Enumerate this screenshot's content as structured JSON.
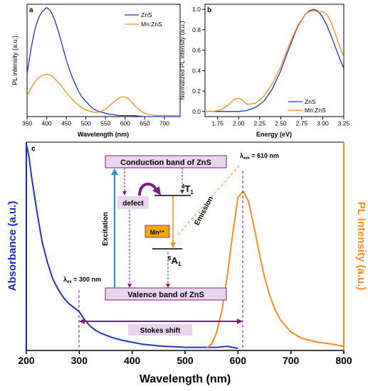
{
  "colors": {
    "blue": "#2233cc",
    "orange": "#ff8c1a",
    "purple": "#7a1f7a",
    "box_fill": "#e9d6ee",
    "mn_box": "#f5a800",
    "excitation_arrow": "#1f8fd6",
    "absorbance_axis": "#1428c8",
    "pl_axis": "#ff8c1a"
  },
  "panels": {
    "a": {
      "label": "a"
    },
    "b": {
      "label": "b"
    },
    "c": {
      "label": "c"
    }
  },
  "diagram": {
    "conduction": "Conduction band of ZnS",
    "valence": "Valence band of ZnS",
    "defect": "defect",
    "mn": "Mn²⁺",
    "t1": "⁴T₁",
    "a1": "⁶A₁",
    "excitation": "Excitation",
    "emission": "Emission",
    "stokes": "Stokes shift",
    "lambda_ex": "λex = 300 nm",
    "lambda_em": "λem = 610 nm"
  },
  "chart_data": [
    {
      "id": "a",
      "type": "line",
      "xlabel": "Wavelength (nm)",
      "ylabel": "PL intensity (a.u.)",
      "xlim": [
        350,
        740
      ],
      "ylim": [
        0,
        1.03
      ],
      "xticks": [
        350,
        400,
        450,
        500,
        550,
        600,
        650,
        700
      ],
      "y_tick_labels": false,
      "legend": "top-right",
      "series": [
        {
          "name": "ZnS",
          "color": "#2233cc",
          "x": [
            350,
            360,
            370,
            380,
            390,
            400,
            410,
            420,
            430,
            440,
            450,
            460,
            470,
            480,
            490,
            500,
            510,
            520,
            530,
            540,
            550,
            560,
            570,
            580,
            590,
            600,
            620,
            650,
            700,
            740
          ],
          "y": [
            0.39,
            0.62,
            0.8,
            0.91,
            0.97,
            1.0,
            0.97,
            0.89,
            0.78,
            0.65,
            0.52,
            0.41,
            0.32,
            0.24,
            0.18,
            0.14,
            0.1,
            0.07,
            0.05,
            0.04,
            0.03,
            0.02,
            0.02,
            0.01,
            0.01,
            0.01,
            0.01,
            0.0,
            0.0,
            0.0
          ]
        },
        {
          "name": "Mn:ZnS",
          "color": "#ff8c1a",
          "x": [
            350,
            360,
            370,
            380,
            390,
            400,
            410,
            420,
            430,
            440,
            450,
            460,
            470,
            480,
            490,
            500,
            510,
            520,
            530,
            540,
            550,
            560,
            570,
            580,
            590,
            600,
            610,
            620,
            630,
            640,
            650,
            660,
            680,
            700,
            740
          ],
          "y": [
            0.19,
            0.26,
            0.32,
            0.36,
            0.38,
            0.39,
            0.38,
            0.35,
            0.31,
            0.27,
            0.22,
            0.18,
            0.14,
            0.11,
            0.08,
            0.06,
            0.05,
            0.04,
            0.04,
            0.05,
            0.07,
            0.1,
            0.13,
            0.16,
            0.18,
            0.18,
            0.16,
            0.12,
            0.08,
            0.05,
            0.03,
            0.02,
            0.01,
            0.01,
            0.01
          ]
        }
      ]
    },
    {
      "id": "b",
      "type": "line",
      "xlabel": "Energy (eV)",
      "ylabel": "Normalized PL intensity (a.u.)",
      "xlim": [
        1.6,
        3.25
      ],
      "ylim": [
        -0.05,
        1.05
      ],
      "xticks": [
        1.75,
        2.0,
        2.25,
        2.5,
        2.75,
        3.0,
        3.25
      ],
      "yticks": [
        0.0,
        0.2,
        0.4,
        0.6,
        0.8,
        1.0
      ],
      "legend": "bottom-right",
      "series": [
        {
          "name": "ZnS",
          "color": "#2233cc",
          "x": [
            1.6,
            1.8,
            2.0,
            2.1,
            2.2,
            2.3,
            2.4,
            2.5,
            2.6,
            2.7,
            2.8,
            2.85,
            2.9,
            2.95,
            3.0,
            3.05,
            3.1,
            3.15,
            3.2,
            3.25
          ],
          "y": [
            0.0,
            0.0,
            0.0,
            0.01,
            0.04,
            0.1,
            0.22,
            0.4,
            0.62,
            0.83,
            0.96,
            0.99,
            1.0,
            0.98,
            0.92,
            0.84,
            0.74,
            0.63,
            0.52,
            0.42
          ]
        },
        {
          "name": "Mn:ZnS",
          "color": "#ff8c1a",
          "x": [
            1.6,
            1.7,
            1.8,
            1.9,
            1.95,
            2.0,
            2.05,
            2.1,
            2.2,
            2.3,
            2.4,
            2.5,
            2.6,
            2.7,
            2.8,
            2.85,
            2.9,
            2.95,
            3.0,
            3.05,
            3.1,
            3.15,
            3.2,
            3.25
          ],
          "y": [
            0.0,
            0.0,
            0.02,
            0.08,
            0.12,
            0.13,
            0.11,
            0.07,
            0.08,
            0.15,
            0.27,
            0.44,
            0.65,
            0.84,
            0.96,
            0.98,
            0.99,
            0.97,
            0.98,
            0.95,
            0.87,
            0.76,
            0.64,
            0.53
          ]
        }
      ]
    },
    {
      "id": "c",
      "type": "line",
      "xlabel": "Wavelength (nm)",
      "ylabel_left": "Absorbance (a.u.)",
      "ylabel_right": "PL intensity (a.u.)",
      "xlim": [
        200,
        800
      ],
      "ylim": [
        0,
        1.0
      ],
      "xticks": [
        200,
        300,
        400,
        500,
        600,
        700,
        800
      ],
      "series": [
        {
          "name": "Absorbance",
          "color": "#2233cc",
          "x": [
            200,
            205,
            210,
            220,
            230,
            240,
            250,
            260,
            270,
            280,
            290,
            300,
            305,
            310,
            320,
            330,
            340,
            350,
            360,
            380,
            400,
            420,
            440,
            460,
            480,
            500,
            520,
            540,
            560,
            580,
            590,
            600
          ],
          "y": [
            1.0,
            0.94,
            0.84,
            0.67,
            0.52,
            0.42,
            0.34,
            0.29,
            0.25,
            0.22,
            0.2,
            0.18,
            0.16,
            0.14,
            0.11,
            0.09,
            0.075,
            0.065,
            0.055,
            0.04,
            0.03,
            0.02,
            0.015,
            0.01,
            0.008,
            0.005,
            0.005,
            0.005,
            0.005,
            0.01,
            0.005,
            0.0
          ]
        },
        {
          "name": "PL (Mn:ZnS)",
          "color": "#ff8c1a",
          "x": [
            540,
            550,
            560,
            570,
            580,
            590,
            600,
            610,
            620,
            630,
            640,
            650,
            660,
            670,
            680,
            700,
            720,
            750,
            780,
            800
          ],
          "y": [
            0.0,
            0.02,
            0.08,
            0.19,
            0.36,
            0.56,
            0.74,
            0.77,
            0.72,
            0.6,
            0.47,
            0.35,
            0.26,
            0.19,
            0.14,
            0.08,
            0.05,
            0.03,
            0.02,
            0.01
          ]
        }
      ]
    }
  ]
}
